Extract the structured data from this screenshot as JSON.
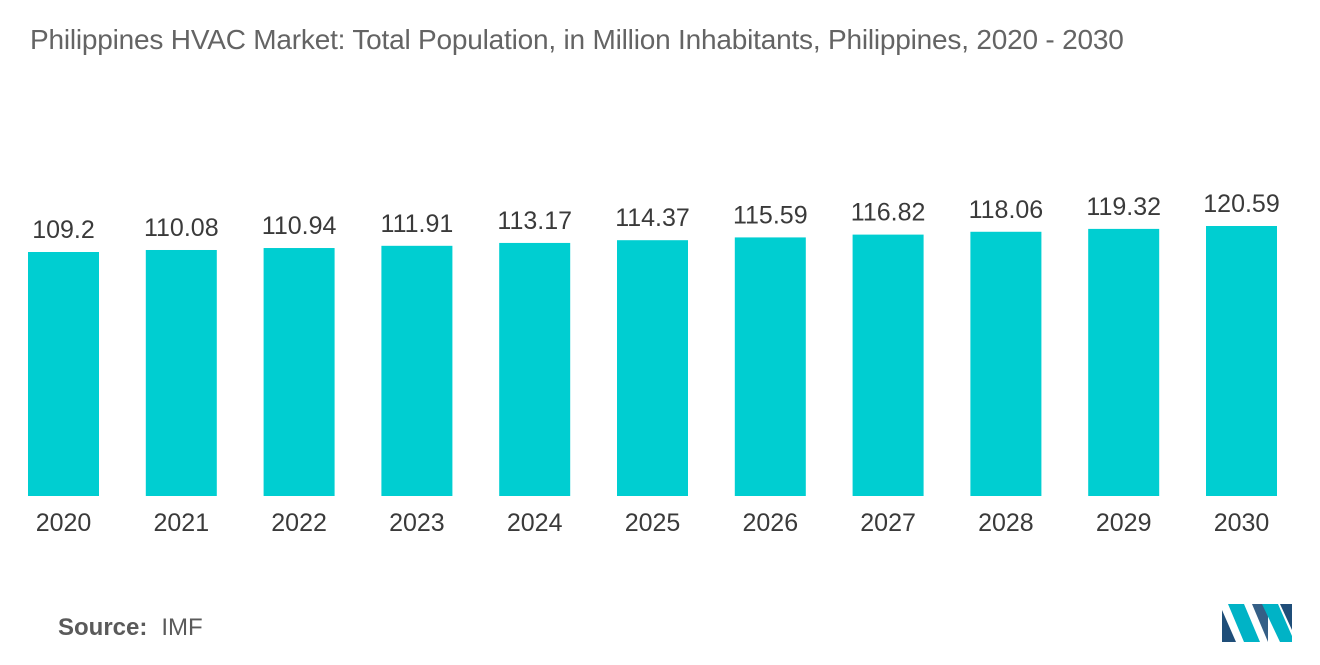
{
  "chart_data": {
    "type": "bar",
    "title": "Philippines HVAC Market: Total Population, in Million Inhabitants, Philippines, 2020 - 2030",
    "xlabel": "",
    "ylabel": "",
    "categories": [
      "2020",
      "2021",
      "2022",
      "2023",
      "2024",
      "2025",
      "2026",
      "2027",
      "2028",
      "2029",
      "2030"
    ],
    "values": [
      109.2,
      110.08,
      110.94,
      111.91,
      113.17,
      114.37,
      115.59,
      116.82,
      118.06,
      119.32,
      120.59
    ],
    "value_labels": [
      "109.2",
      "110.08",
      "110.94",
      "111.91",
      "113.17",
      "114.37",
      "115.59",
      "116.82",
      "118.06",
      "119.32",
      "120.59"
    ],
    "ylim": [
      0,
      133
    ],
    "grid": false,
    "legend": "none",
    "bar_color": "#00ced1"
  },
  "source": {
    "label": "Source:",
    "value": "IMF"
  },
  "logo": {
    "icon": "mordor-intelligence-logo-icon",
    "colors": [
      "#1f4e79",
      "#00b3c6"
    ]
  }
}
